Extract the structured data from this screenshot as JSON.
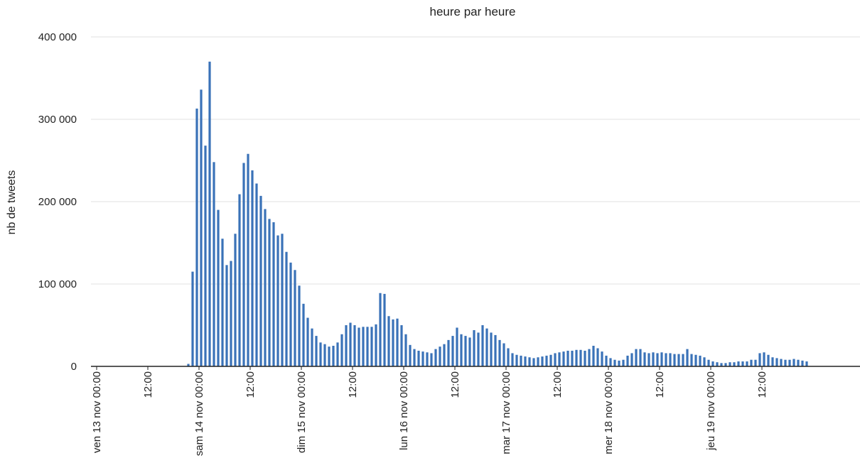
{
  "chart_data": {
    "type": "bar",
    "title": "heure par heure",
    "xlabel": "",
    "ylabel": "nb de tweets",
    "ylim": [
      0,
      400000
    ],
    "y_ticks": [
      {
        "value": 0,
        "label": "0"
      },
      {
        "value": 100000,
        "label": "100 000"
      },
      {
        "value": 200000,
        "label": "200 000"
      },
      {
        "value": 300000,
        "label": "300 000"
      },
      {
        "value": 400000,
        "label": "400 000"
      }
    ],
    "x_ticks": [
      {
        "hour": 0,
        "label": "ven 13 nov 00:00"
      },
      {
        "hour": 12,
        "label": "12:00"
      },
      {
        "hour": 24,
        "label": "sam 14 nov 00:00"
      },
      {
        "hour": 36,
        "label": "12:00"
      },
      {
        "hour": 48,
        "label": "dim 15 nov 00:00"
      },
      {
        "hour": 60,
        "label": "12:00"
      },
      {
        "hour": 72,
        "label": "lun 16 nov 00:00"
      },
      {
        "hour": 84,
        "label": "12:00"
      },
      {
        "hour": 96,
        "label": "mar 17 nov 00:00"
      },
      {
        "hour": 108,
        "label": "12:00"
      },
      {
        "hour": 120,
        "label": "mer 18 nov 00:00"
      },
      {
        "hour": 132,
        "label": "12:00"
      },
      {
        "hour": 144,
        "label": "jeu 19 nov 00:00"
      },
      {
        "hour": 156,
        "label": "12:00"
      }
    ],
    "grid": true,
    "color": "#3a72b8",
    "x_start": "ven 13 nov 00:00",
    "x_unit": "hour",
    "values": [
      0,
      0,
      0,
      0,
      0,
      0,
      0,
      0,
      0,
      0,
      0,
      0,
      0,
      0,
      0,
      0,
      0,
      0,
      0,
      0,
      0,
      3000,
      115000,
      313000,
      336000,
      268000,
      370000,
      248000,
      190000,
      155000,
      123000,
      128000,
      161000,
      209000,
      247000,
      258000,
      238000,
      222000,
      207000,
      191000,
      179000,
      175000,
      159000,
      161000,
      139000,
      126000,
      117000,
      98000,
      76000,
      59000,
      46000,
      37000,
      29000,
      27000,
      24000,
      25000,
      29000,
      39000,
      50000,
      53000,
      50000,
      47000,
      48000,
      48000,
      48000,
      51000,
      89000,
      88000,
      61000,
      57000,
      58000,
      50000,
      39000,
      26000,
      21000,
      19000,
      18000,
      17000,
      16000,
      21000,
      24000,
      27000,
      32000,
      37000,
      47000,
      39000,
      37000,
      35000,
      44000,
      41000,
      50000,
      46000,
      41000,
      38000,
      32000,
      28000,
      22000,
      16000,
      14000,
      13000,
      12000,
      11000,
      10000,
      11000,
      12000,
      13000,
      14000,
      16000,
      17000,
      18000,
      19000,
      19000,
      20000,
      20000,
      19000,
      21000,
      25000,
      22000,
      18000,
      13000,
      10000,
      8000,
      7000,
      8000,
      13000,
      16000,
      21000,
      21000,
      17000,
      16000,
      17000,
      16000,
      17000,
      16000,
      16000,
      15000,
      15000,
      15000,
      21000,
      15000,
      14000,
      13000,
      11000,
      8000,
      6000,
      5000,
      4000,
      4000,
      5000,
      5000,
      6000,
      6000,
      6000,
      8000,
      8000,
      16000,
      17000,
      14000,
      11000,
      10000,
      9000,
      8000,
      8000,
      9000,
      8000,
      7000,
      6000
    ]
  }
}
